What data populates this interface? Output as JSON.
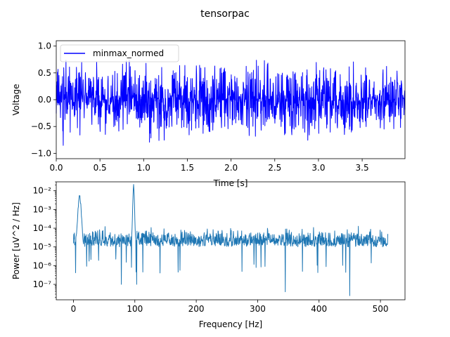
{
  "figure": {
    "suptitle": "tensorpac"
  },
  "chart_data": [
    {
      "type": "line",
      "title": "",
      "xlabel": "Time [s]",
      "ylabel": "Voltage",
      "xlim": [
        0,
        3.99
      ],
      "ylim": [
        -1.1,
        1.1
      ],
      "x_ticks": [
        0.0,
        0.5,
        1.0,
        1.5,
        2.0,
        2.5,
        3.0,
        3.5
      ],
      "x_tick_labels": [
        "0.0",
        "0.5",
        "1.0",
        "1.5",
        "2.0",
        "2.5",
        "3.0",
        "3.5"
      ],
      "y_ticks": [
        -1.0,
        -0.5,
        0.0,
        0.5,
        1.0
      ],
      "y_tick_labels": [
        "−1.0",
        "−0.5",
        "0.0",
        "0.5",
        "1.0"
      ],
      "legend": {
        "placement": "upper-left",
        "entries": [
          "minmax_normed"
        ]
      },
      "grid": false,
      "series": [
        {
          "name": "minmax_normed",
          "color": "#0000ff",
          "signal": "noisy signal, approx. 1024 Hz sampling over 4 s, min-max normalised to [-1, 1]",
          "envelope": {
            "x": [
              0.0,
              0.06,
              0.08,
              0.1,
              0.5,
              0.7,
              0.9,
              1.1,
              1.3,
              1.5,
              1.9,
              2.1,
              2.25,
              2.5,
              2.8,
              3.0,
              3.2,
              3.5,
              3.9,
              3.99
            ],
            "upper": [
              0.6,
              0.7,
              1.0,
              0.75,
              0.7,
              0.72,
              0.8,
              0.7,
              0.7,
              0.65,
              0.68,
              0.65,
              0.87,
              0.7,
              0.7,
              0.7,
              0.65,
              0.7,
              0.6,
              0.3
            ],
            "lower": [
              -0.5,
              -0.83,
              -1.0,
              -0.7,
              -0.75,
              -0.6,
              -0.68,
              -0.87,
              -0.7,
              -0.72,
              -0.6,
              -0.62,
              -0.7,
              -0.65,
              -0.7,
              -0.9,
              -0.7,
              -0.6,
              -0.55,
              -0.5
            ]
          }
        }
      ]
    },
    {
      "type": "line",
      "title": "",
      "xlabel": "Frequency [Hz]",
      "ylabel": "Power [uV^2 / Hz]",
      "yscale": "log",
      "xlim": [
        -28,
        540
      ],
      "ylim": [
        1.5e-08,
        0.03
      ],
      "x_ticks": [
        0,
        100,
        200,
        300,
        400,
        500
      ],
      "x_tick_labels": [
        "0",
        "100",
        "200",
        "300",
        "400",
        "500"
      ],
      "y_ticks": [
        1e-07,
        1e-06,
        1e-05,
        0.0001,
        0.001,
        0.01
      ],
      "y_tick_labels": [
        "10⁻⁷",
        "10⁻⁶",
        "10⁻⁵",
        "10⁻⁴",
        "10⁻³",
        "10⁻²"
      ],
      "grid": false,
      "series": [
        {
          "color": "#1f77b4",
          "baseline": 5e-05,
          "peaks": [
            {
              "x": 10,
              "y": 0.005
            },
            {
              "x": 98,
              "y": 0.02
            }
          ],
          "dips": [
            {
              "x": 78,
              "y": 1e-07
            },
            {
              "x": 103,
              "y": 1e-07
            },
            {
              "x": 345,
              "y": 4e-08
            },
            {
              "x": 450,
              "y": 2.5e-08
            }
          ],
          "x_max": 512
        }
      ]
    }
  ]
}
